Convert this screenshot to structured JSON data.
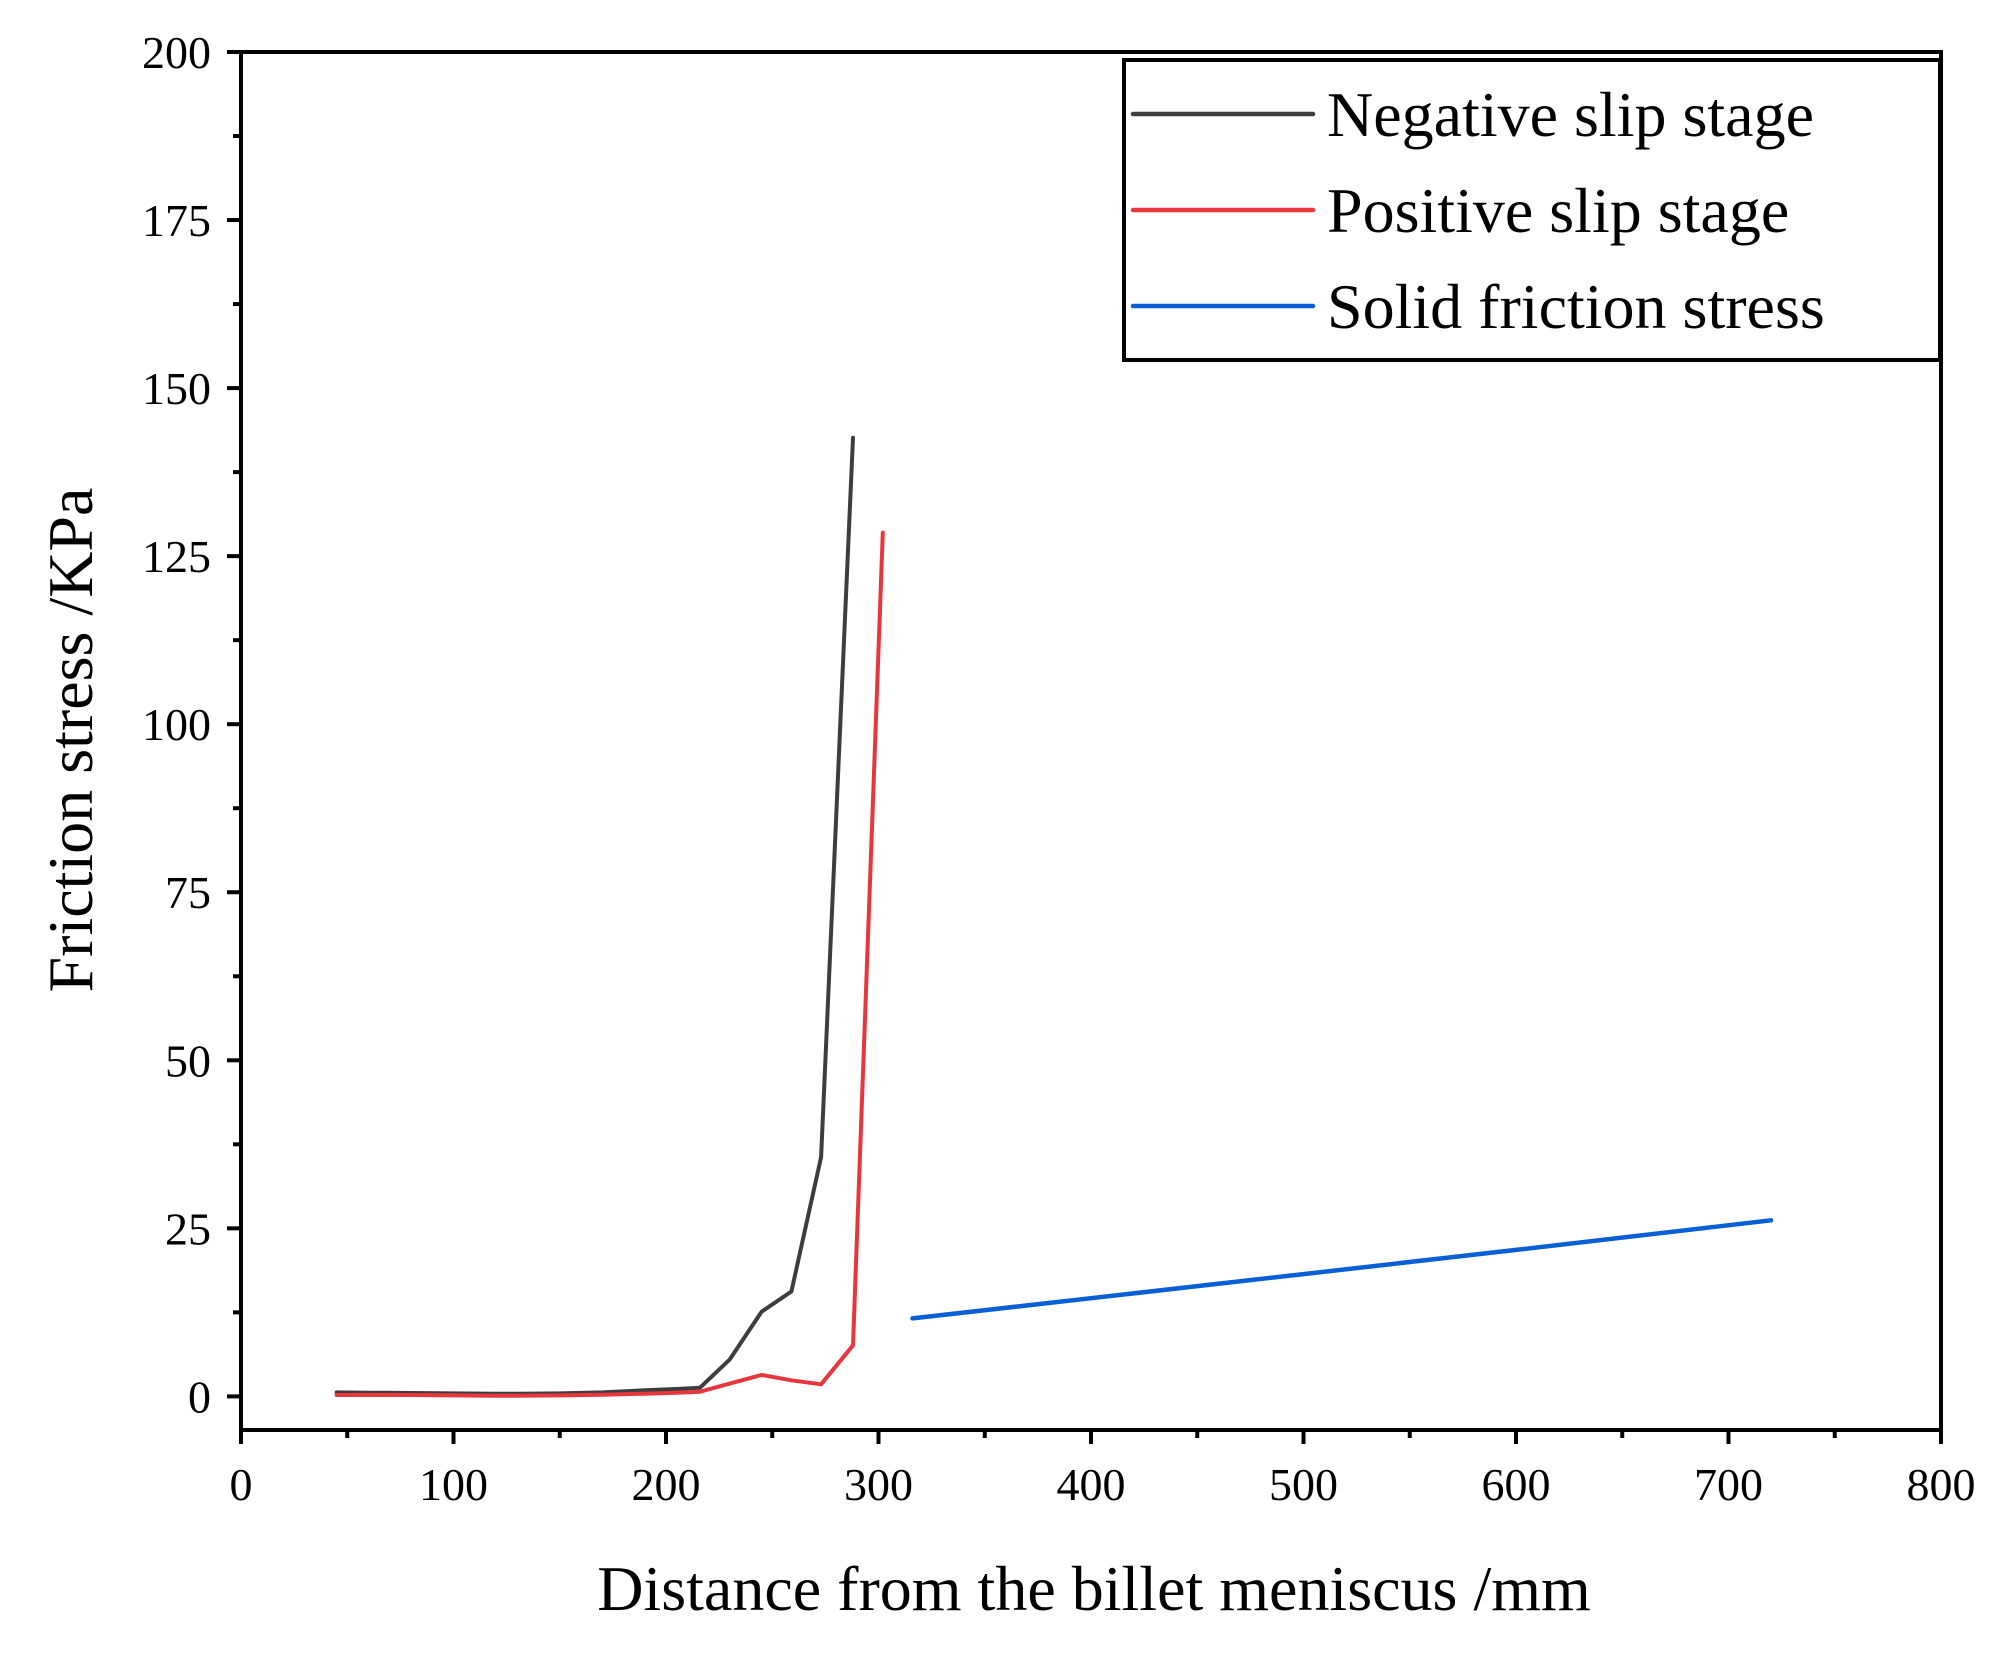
{
  "chart_data": {
    "type": "line",
    "title": "",
    "xlabel": "Distance from the billet meniscus /mm",
    "ylabel": "Friction stress  /KPa",
    "xlim": [
      0,
      800
    ],
    "ylim": [
      -5,
      200
    ],
    "xticks": [
      0,
      100,
      200,
      300,
      400,
      500,
      600,
      700,
      800
    ],
    "xtick_labels": [
      "0",
      "100",
      "200",
      "300",
      "400",
      "500",
      "600",
      "700",
      "800"
    ],
    "yticks": [
      0,
      25,
      50,
      75,
      100,
      125,
      150,
      175,
      200
    ],
    "ytick_labels": [
      "0",
      "25",
      "50",
      "75",
      "100",
      "125",
      "150",
      "175",
      "200"
    ],
    "grid": false,
    "legend_position": "top-right",
    "series": [
      {
        "name": "Negative slip stage",
        "color": "#3d3d3d",
        "points": [
          [
            45,
            0.6
          ],
          [
            60,
            0.55
          ],
          [
            80,
            0.5
          ],
          [
            100,
            0.45
          ],
          [
            120,
            0.4
          ],
          [
            130,
            0.4
          ],
          [
            150,
            0.45
          ],
          [
            170,
            0.6
          ],
          [
            190,
            0.9
          ],
          [
            205,
            1.1
          ],
          [
            216,
            1.3
          ],
          [
            230,
            5.5
          ],
          [
            245,
            12.6
          ],
          [
            259,
            15.6
          ],
          [
            273,
            35.6
          ],
          [
            288,
            142.6
          ]
        ]
      },
      {
        "name": "Positive slip stage",
        "color": "#e8363d",
        "points": [
          [
            45,
            0.2
          ],
          [
            60,
            0.2
          ],
          [
            80,
            0.2
          ],
          [
            100,
            0.15
          ],
          [
            120,
            0.1
          ],
          [
            130,
            0.1
          ],
          [
            150,
            0.15
          ],
          [
            170,
            0.25
          ],
          [
            190,
            0.4
          ],
          [
            205,
            0.55
          ],
          [
            216,
            0.7
          ],
          [
            230,
            1.9
          ],
          [
            245,
            3.2
          ],
          [
            259,
            2.4
          ],
          [
            273,
            1.8
          ],
          [
            288,
            7.6
          ],
          [
            302,
            128.5
          ]
        ]
      },
      {
        "name": "Solid friction stress",
        "color": "#0a5fd6",
        "points": [
          [
            316,
            11.6
          ],
          [
            400,
            14.6
          ],
          [
            500,
            18.2
          ],
          [
            600,
            21.8
          ],
          [
            720,
            26.2
          ]
        ]
      }
    ]
  }
}
